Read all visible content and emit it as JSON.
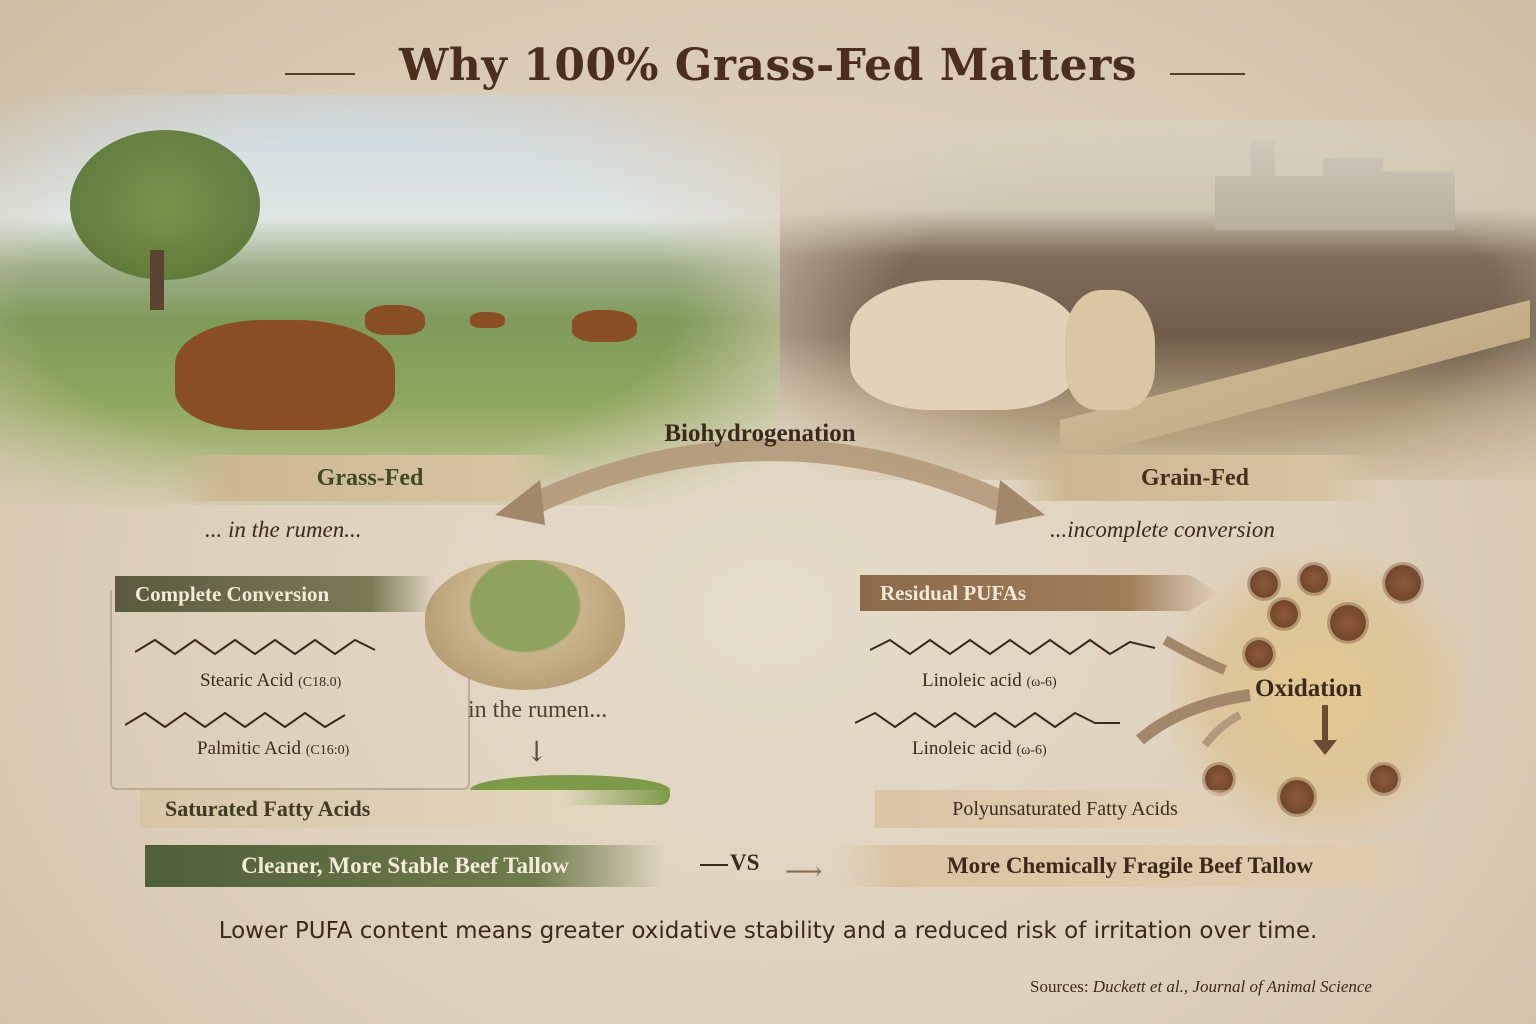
{
  "title": "Why 100% Grass-Fed Matters",
  "left": {
    "banner": "Grass-Fed",
    "subtitle": "... in the rumen...",
    "ribbon": "Complete Conversion",
    "acids": [
      {
        "name": "Stearic Acid",
        "formula": "(C18.0)"
      },
      {
        "name": "Palmitic Acid",
        "formula": "(C16:0)"
      }
    ],
    "rumen_label": "in the rumen...",
    "result": "Saturated Fatty Acids",
    "outcome": "Cleaner, More Stable Beef Tallow"
  },
  "center": {
    "process": "Biohydrogenation",
    "vs": "VS"
  },
  "right": {
    "banner": "Grain-Fed",
    "subtitle": "...incomplete conversion",
    "ribbon": "Residual PUFAs",
    "acids": [
      {
        "name": "Linoleic acid",
        "formula": "(ω-6)"
      },
      {
        "name": "Linoleic acid",
        "formula": "(ω-6)"
      }
    ],
    "oxidation": "Oxidation",
    "result": "Polyunsaturated Fatty Acids",
    "outcome": "More Chemically Fragile Beef Tallow"
  },
  "footer": {
    "statement": "Lower PUFA content means greater oxidative stability and a reduced risk of irritation over time.",
    "sources_label": "Sources:",
    "sources": "Duckett et al., Journal of Animal Science"
  },
  "colors": {
    "grass_green": "#4f5f37",
    "grain_brown": "#8a6a4a",
    "text": "#3b2a1c",
    "background": "#ddd0bb"
  }
}
